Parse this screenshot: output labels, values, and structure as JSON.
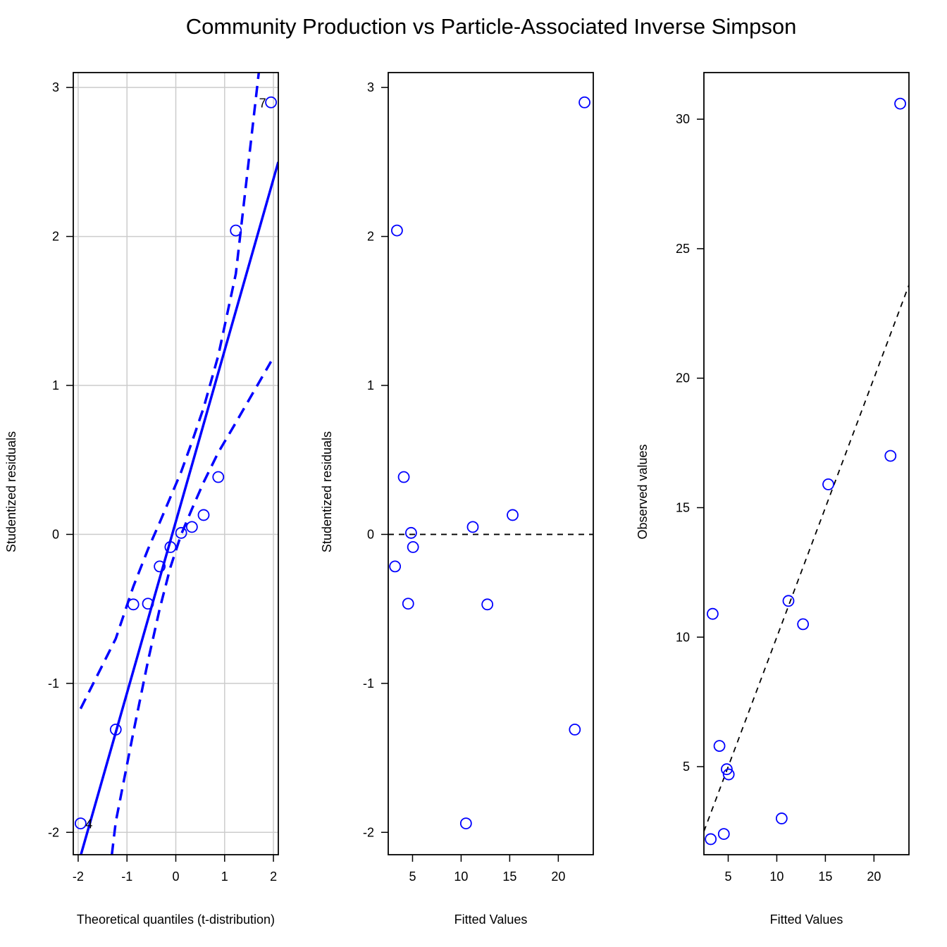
{
  "title": "Community Production vs Particle-Associated Inverse Simpson",
  "colors": {
    "points": "#0000ff",
    "grid": "#cccccc",
    "axis": "#000000"
  },
  "chart_data": [
    {
      "type": "scatter",
      "xlabel": "Theoretical quantiles (t-distribution)",
      "ylabel": "Studentized residuals",
      "xlim": [
        -2.1,
        2.1
      ],
      "ylim": [
        -2.15,
        3.1
      ],
      "xticks": [
        "-2",
        "-1",
        "0",
        "1",
        "2"
      ],
      "yticks": [
        "-2",
        "-1",
        "0",
        "1",
        "2",
        "3"
      ],
      "grid": true,
      "points": [
        {
          "x": -1.95,
          "y": -1.94
        },
        {
          "x": -1.23,
          "y": -1.31
        },
        {
          "x": -0.87,
          "y": -0.47
        },
        {
          "x": -0.57,
          "y": -0.465
        },
        {
          "x": -0.33,
          "y": -0.215
        },
        {
          "x": -0.11,
          "y": -0.085
        },
        {
          "x": 0.11,
          "y": 0.01
        },
        {
          "x": 0.33,
          "y": 0.05
        },
        {
          "x": 0.57,
          "y": 0.13
        },
        {
          "x": 0.87,
          "y": 0.385
        },
        {
          "x": 1.23,
          "y": 2.04
        },
        {
          "x": 1.95,
          "y": 2.9
        }
      ],
      "point_labels": [
        {
          "x": -1.95,
          "y": -1.94,
          "text": "4",
          "side": "right"
        },
        {
          "x": 1.95,
          "y": 2.9,
          "text": "7",
          "side": "left"
        }
      ],
      "reference_line": {
        "x": [
          -2.1,
          2.1
        ],
        "y": [
          -2.33,
          2.5
        ]
      },
      "confidence_bands": {
        "upper": {
          "x": [
            -1.95,
            -1.23,
            -0.87,
            -0.57,
            -0.33,
            -0.11,
            0.11,
            0.33,
            0.57,
            0.87,
            1.23,
            1.7
          ],
          "y": [
            -1.17,
            -0.7,
            -0.35,
            -0.1,
            0.08,
            0.25,
            0.42,
            0.62,
            0.85,
            1.2,
            1.75,
            3.1
          ]
        },
        "lower": {
          "x": [
            -1.31,
            -1.23,
            -0.87,
            -0.57,
            -0.33,
            -0.11,
            0.11,
            0.33,
            0.57,
            0.87,
            1.23,
            1.95
          ],
          "y": [
            -2.15,
            -1.93,
            -1.33,
            -0.85,
            -0.5,
            -0.22,
            0.0,
            0.17,
            0.35,
            0.55,
            0.75,
            1.16
          ]
        }
      }
    },
    {
      "type": "scatter",
      "xlabel": "Fitted Values",
      "ylabel": "Studentized residuals",
      "xlim": [
        2.5,
        23.6
      ],
      "ylim": [
        -2.15,
        3.1
      ],
      "xticks": [
        "5",
        "10",
        "15",
        "20"
      ],
      "yticks": [
        "-2",
        "-1",
        "0",
        "1",
        "2",
        "3"
      ],
      "grid": false,
      "points": [
        {
          "x": 3.4,
          "y": 2.04
        },
        {
          "x": 4.1,
          "y": 0.385
        },
        {
          "x": 4.85,
          "y": 0.01
        },
        {
          "x": 5.05,
          "y": -0.085
        },
        {
          "x": 3.2,
          "y": -0.215
        },
        {
          "x": 4.55,
          "y": -0.465
        },
        {
          "x": 11.2,
          "y": 0.05
        },
        {
          "x": 15.3,
          "y": 0.13
        },
        {
          "x": 12.7,
          "y": -0.47
        },
        {
          "x": 21.7,
          "y": -1.31
        },
        {
          "x": 10.5,
          "y": -1.94
        },
        {
          "x": 22.7,
          "y": 2.9
        }
      ],
      "reference_line": {
        "x": [
          2.5,
          23.6
        ],
        "y": [
          0,
          0
        ],
        "style": "dashed"
      }
    },
    {
      "type": "scatter",
      "xlabel": "Fitted Values",
      "ylabel": "Observed values",
      "xlim": [
        2.5,
        23.6
      ],
      "ylim": [
        1.6,
        31.8
      ],
      "xticks": [
        "5",
        "10",
        "15",
        "20"
      ],
      "yticks": [
        "5",
        "10",
        "15",
        "20",
        "25",
        "30"
      ],
      "grid": false,
      "points": [
        {
          "x": 3.4,
          "y": 10.9
        },
        {
          "x": 4.1,
          "y": 5.8
        },
        {
          "x": 4.85,
          "y": 4.9
        },
        {
          "x": 5.05,
          "y": 4.7
        },
        {
          "x": 3.2,
          "y": 2.2
        },
        {
          "x": 4.55,
          "y": 2.4
        },
        {
          "x": 11.2,
          "y": 11.4
        },
        {
          "x": 15.3,
          "y": 15.9
        },
        {
          "x": 12.7,
          "y": 10.5
        },
        {
          "x": 21.7,
          "y": 17.0
        },
        {
          "x": 10.5,
          "y": 3.0
        },
        {
          "x": 22.7,
          "y": 30.6
        }
      ],
      "reference_line": {
        "x": [
          2.5,
          23.6
        ],
        "y": [
          2.5,
          23.6
        ],
        "style": "dashed"
      }
    }
  ]
}
